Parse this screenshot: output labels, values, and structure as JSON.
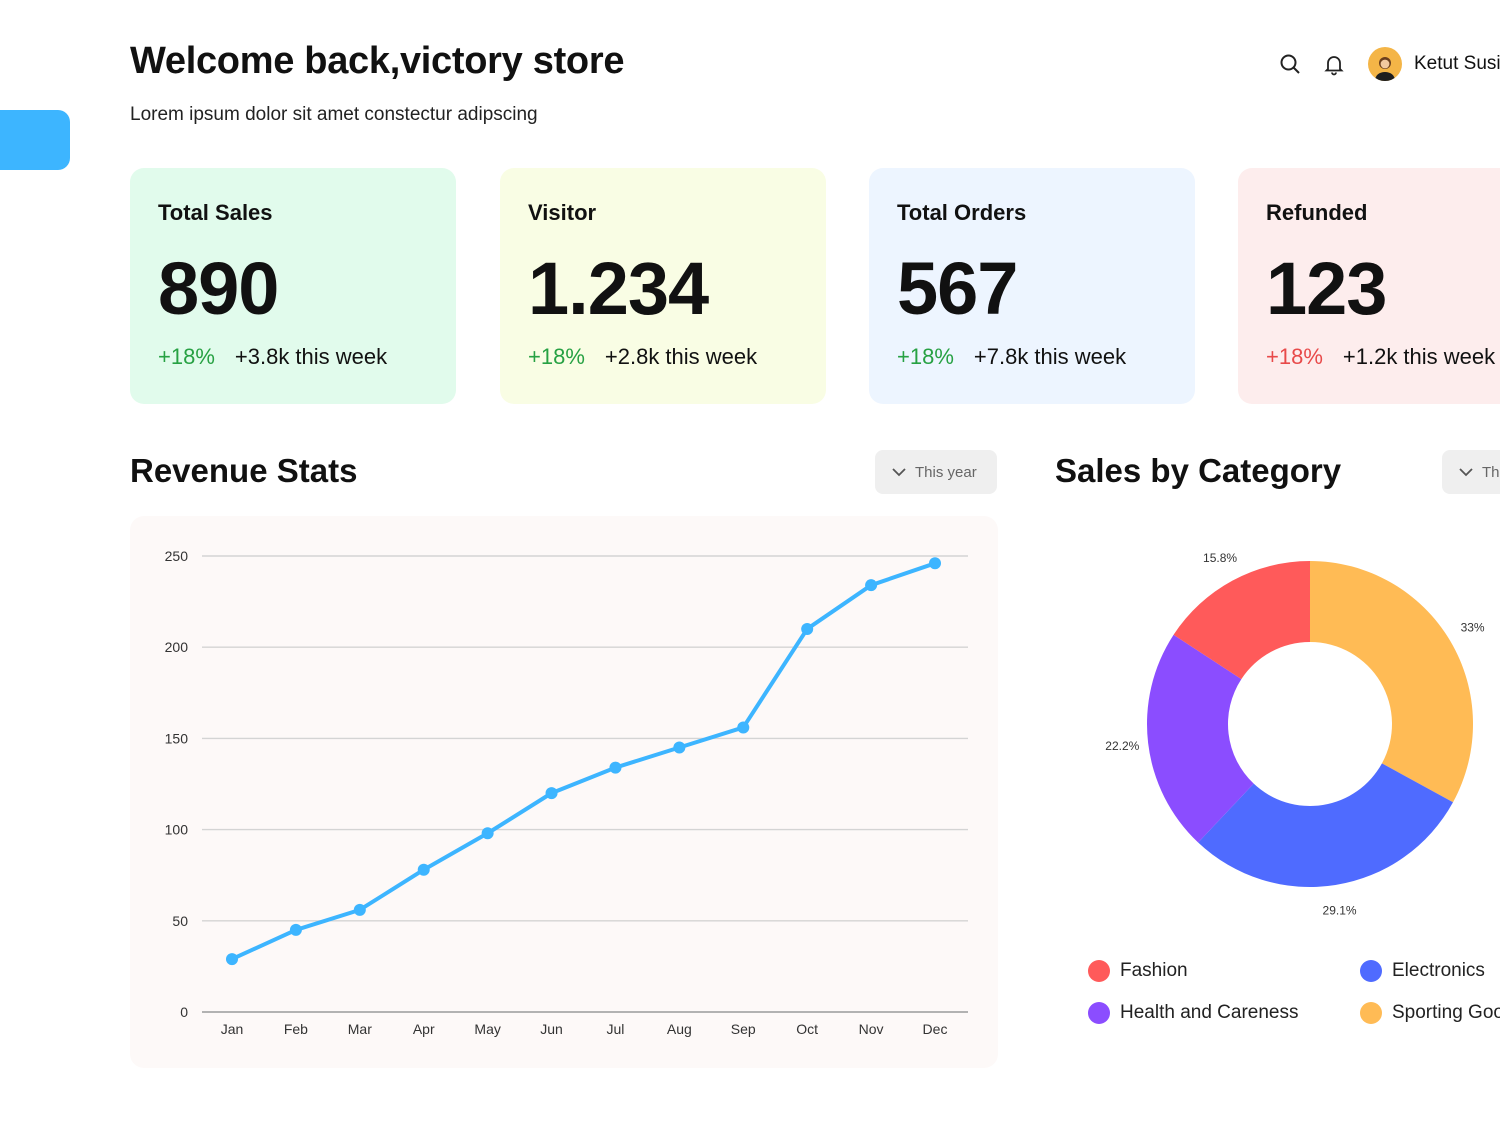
{
  "header": {
    "welcome": "Welcome back,victory store",
    "subtitle": "Lorem ipsum dolor sit amet constectur adipscing",
    "user_name": "Ketut Susi",
    "icons": [
      "search-icon",
      "bell-icon"
    ]
  },
  "cards": [
    {
      "title": "Total Sales",
      "value": "890",
      "pct": "+18%",
      "trend": "up",
      "week": "+3.8k this week",
      "bg": "#e1fbec"
    },
    {
      "title": "Visitor",
      "value": "1.234",
      "pct": "+18%",
      "trend": "up",
      "week": "+2.8k this week",
      "bg": "#f9fde4"
    },
    {
      "title": "Total Orders",
      "value": "567",
      "pct": "+18%",
      "trend": "up",
      "week": "+7.8k this week",
      "bg": "#edf5ff"
    },
    {
      "title": "Refunded",
      "value": "123",
      "pct": "+18%",
      "trend": "down",
      "week": "+1.2k this week",
      "bg": "#fdeded"
    }
  ],
  "revenue": {
    "title": "Revenue Stats",
    "filter": "This year"
  },
  "category": {
    "title": "Sales by Category",
    "filter": "This year"
  },
  "colors": {
    "accent": "#3db5ff",
    "up": "#27a143",
    "down": "#e84a4a",
    "fashion": "#ff5a5a",
    "electronics": "#4f6bff",
    "health": "#8b4dff",
    "sporting": "#ffbb55"
  },
  "chart_data": [
    {
      "type": "line",
      "categories": [
        "Jan",
        "Feb",
        "Mar",
        "Apr",
        "May",
        "Jun",
        "Jul",
        "Aug",
        "Sep",
        "Oct",
        "Nov",
        "Dec"
      ],
      "series": [
        {
          "values": [
            29,
            45,
            56,
            78,
            98,
            120,
            134,
            145,
            156,
            210,
            234,
            246
          ]
        }
      ],
      "ylim": [
        0,
        250
      ],
      "yticks": [
        0,
        50,
        100,
        150,
        200,
        250
      ],
      "grid": true,
      "color": "#3db5ff"
    },
    {
      "type": "pie",
      "donut": true,
      "slices": [
        {
          "name": "Sporting Goods",
          "value": 33,
          "label": "33%",
          "color": "#ffbb55"
        },
        {
          "name": "Electronics",
          "value": 29.1,
          "label": "29.1%",
          "color": "#4f6bff"
        },
        {
          "name": "Health and Careness",
          "value": 22.2,
          "label": "22.2%",
          "color": "#8b4dff"
        },
        {
          "name": "Fashion",
          "value": 15.8,
          "label": "15.8%",
          "color": "#ff5a5a"
        }
      ],
      "legend": [
        {
          "name": "Fashion",
          "color": "#ff5a5a"
        },
        {
          "name": "Electronics",
          "color": "#4f6bff"
        },
        {
          "name": "Health and Careness",
          "color": "#8b4dff"
        },
        {
          "name": "Sporting Goods",
          "color": "#ffbb55"
        }
      ]
    }
  ]
}
